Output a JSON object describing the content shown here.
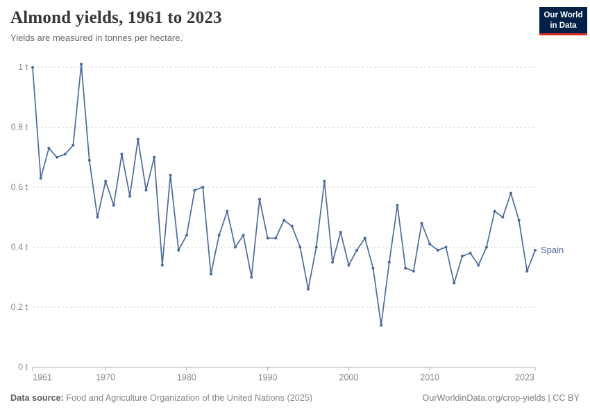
{
  "header": {
    "title": "Almond yields, 1961 to 2023",
    "subtitle": "Yields are measured in tonnes per hectare."
  },
  "logo": {
    "line1": "Our World",
    "line2": "in Data",
    "bg_color": "#002147",
    "accent_color": "#dc2a23"
  },
  "chart_data": {
    "type": "line",
    "title": "Almond yields, 1961 to 2023",
    "unit": "t",
    "xlabel": "",
    "ylabel": "tonnes per hectare",
    "ylim": [
      0,
      1
    ],
    "xlim": [
      1961,
      2023
    ],
    "grid": "dashed-horizontal",
    "legend_position": "end-of-line",
    "line_color": "#4c6a9c",
    "ytick_labels": [
      "0 t",
      "0.2 t",
      "0.4 t",
      "0.6 t",
      "0.8 t",
      "1 t"
    ],
    "ytick_values": [
      0,
      0.2,
      0.4,
      0.6,
      0.8,
      1
    ],
    "xtick_years": [
      1961,
      1970,
      1980,
      1990,
      2000,
      2010,
      2023
    ],
    "x": [
      1961,
      1962,
      1963,
      1964,
      1965,
      1966,
      1967,
      1968,
      1969,
      1970,
      1971,
      1972,
      1973,
      1974,
      1975,
      1976,
      1977,
      1978,
      1979,
      1980,
      1981,
      1982,
      1983,
      1984,
      1985,
      1986,
      1987,
      1988,
      1989,
      1990,
      1991,
      1992,
      1993,
      1994,
      1995,
      1996,
      1997,
      1998,
      1999,
      2000,
      2001,
      2002,
      2003,
      2004,
      2005,
      2006,
      2007,
      2008,
      2009,
      2010,
      2011,
      2012,
      2013,
      2014,
      2015,
      2016,
      2017,
      2018,
      2019,
      2020,
      2021,
      2022,
      2023
    ],
    "series": [
      {
        "name": "Spain",
        "values": [
          1.0,
          0.63,
          0.73,
          0.7,
          0.71,
          0.74,
          1.01,
          0.69,
          0.5,
          0.62,
          0.54,
          0.71,
          0.57,
          0.76,
          0.59,
          0.7,
          0.34,
          0.64,
          0.39,
          0.44,
          0.59,
          0.6,
          0.31,
          0.44,
          0.52,
          0.4,
          0.44,
          0.3,
          0.56,
          0.43,
          0.43,
          0.49,
          0.47,
          0.4,
          0.26,
          0.4,
          0.62,
          0.35,
          0.45,
          0.34,
          0.39,
          0.43,
          0.33,
          0.14,
          0.35,
          0.54,
          0.33,
          0.32,
          0.48,
          0.41,
          0.39,
          0.4,
          0.28,
          0.37,
          0.38,
          0.34,
          0.4,
          0.52,
          0.5,
          0.58,
          0.49,
          0.32,
          0.39
        ]
      }
    ]
  },
  "footer": {
    "source_label": "Data source:",
    "source_text": " Food and Agriculture Organization of the United Nations (2025)",
    "right_text": "OurWorldinData.org/crop-yields | CC BY"
  }
}
